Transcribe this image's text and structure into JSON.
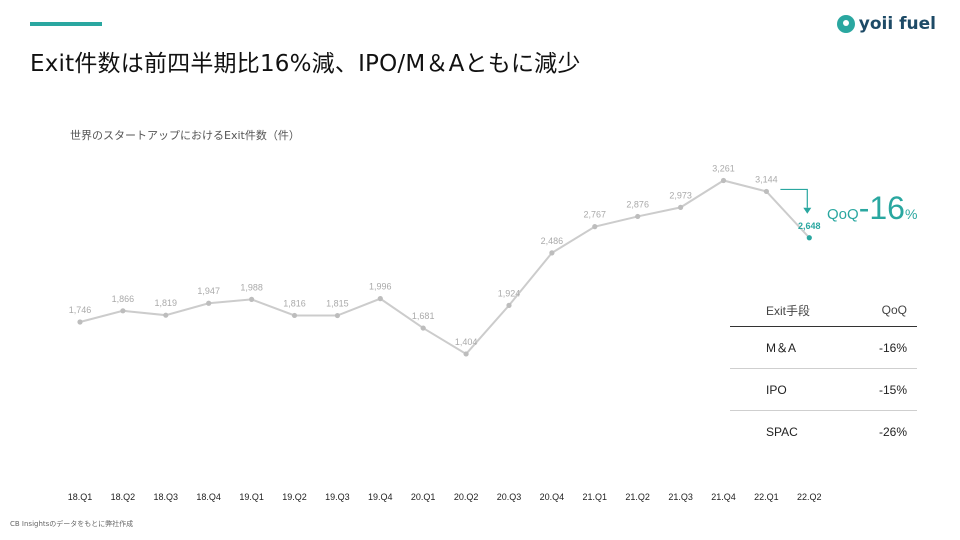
{
  "header": {
    "title": "Exit件数は前四半期比16%減、IPO/M＆Aともに減少",
    "logo_text": "yoii fuel",
    "accent_color": "#2aa7a0"
  },
  "chart_data": {
    "type": "line",
    "title": "世界のスタートアップにおけるExit件数（件）",
    "categories": [
      "18.Q1",
      "18.Q2",
      "18.Q3",
      "18.Q4",
      "19.Q1",
      "19.Q2",
      "19.Q3",
      "19.Q4",
      "20.Q1",
      "20.Q2",
      "20.Q3",
      "20.Q4",
      "21.Q1",
      "21.Q2",
      "21.Q3",
      "21.Q4",
      "22.Q1",
      "22.Q2"
    ],
    "values": [
      1746,
      1866,
      1819,
      1947,
      1988,
      1816,
      1815,
      1996,
      1681,
      1404,
      1924,
      2486,
      2767,
      2876,
      2973,
      3261,
      3144,
      2648
    ],
    "labels": [
      "1,746",
      "1,866",
      "1,819",
      "1,947",
      "1,988",
      "1,816",
      "1,815",
      "1,996",
      "1,681",
      "1,404",
      "1,924",
      "2,486",
      "2,767",
      "2,876",
      "2,973",
      "3,261",
      "3,144",
      "2,648"
    ],
    "highlight_index": 17,
    "line_color": "#cccccc",
    "highlight_color": "#2aa7a0",
    "grid": false
  },
  "callout": {
    "prefix": "QoQ",
    "value": "-16",
    "unit": "%"
  },
  "summary_table": {
    "headers": [
      "Exit手段",
      "QoQ"
    ],
    "rows": [
      [
        "M＆A",
        "-16%"
      ],
      [
        "IPO",
        "-15%"
      ],
      [
        "SPAC",
        "-26%"
      ]
    ]
  },
  "footnote": "CB Insightsのデータをもとに弊社作成"
}
